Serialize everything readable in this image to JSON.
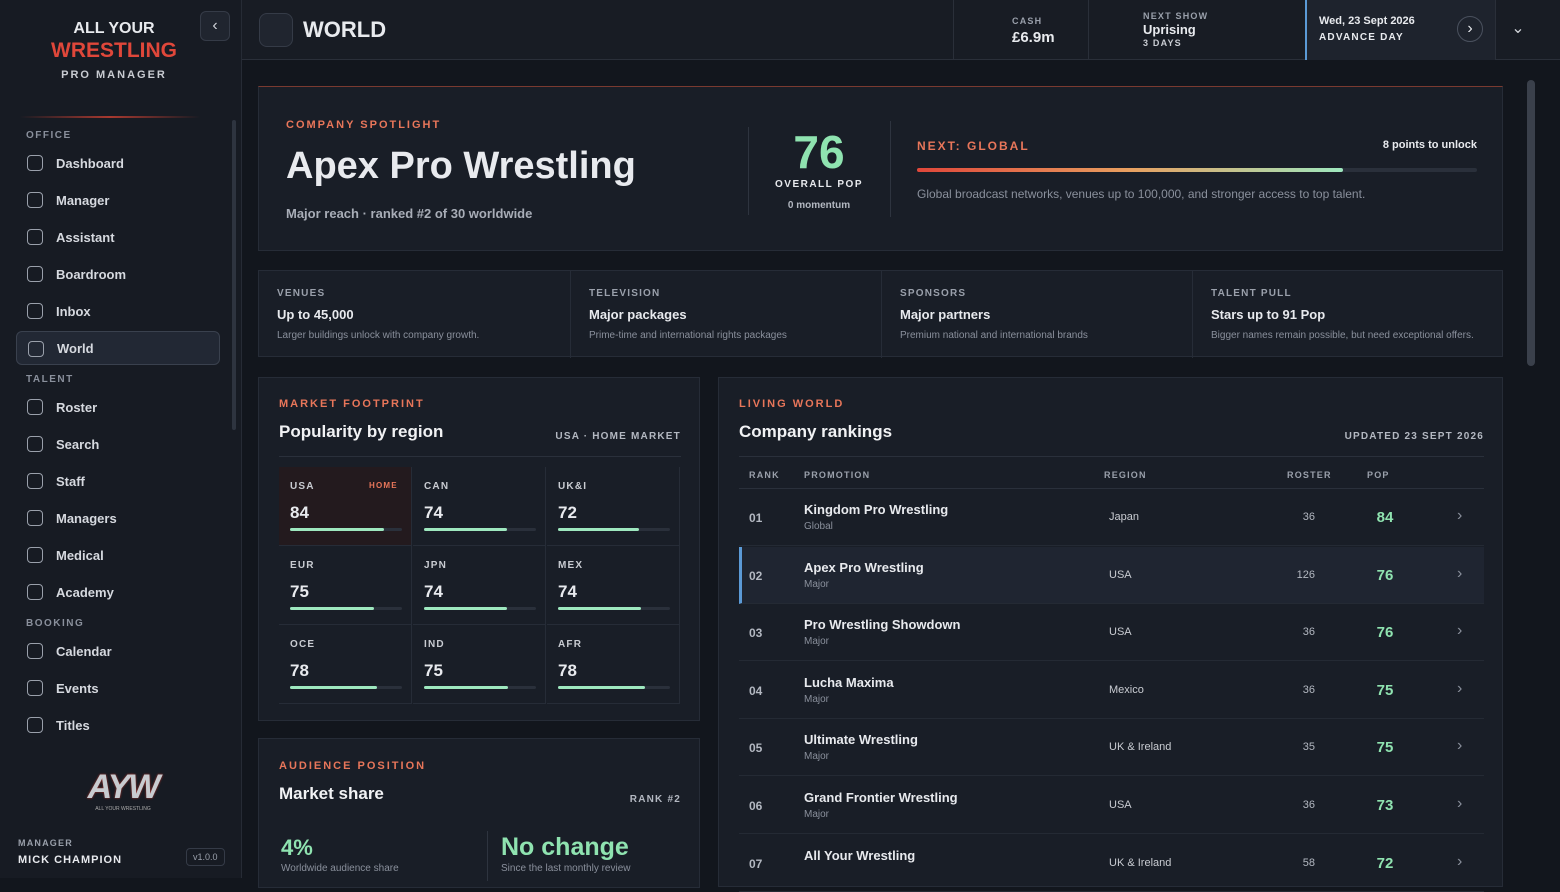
{
  "sidebar": {
    "brand": {
      "line1": "ALL YOUR",
      "line2": "WRESTLING",
      "line3": "PRO MANAGER"
    },
    "sections": [
      {
        "title": "OFFICE",
        "items": [
          {
            "label": "Dashboard"
          },
          {
            "label": "Manager"
          },
          {
            "label": "Assistant"
          },
          {
            "label": "Boardroom"
          },
          {
            "label": "Inbox"
          },
          {
            "label": "World",
            "active": true
          }
        ]
      },
      {
        "title": "TALENT",
        "items": [
          {
            "label": "Roster"
          },
          {
            "label": "Search"
          },
          {
            "label": "Staff"
          },
          {
            "label": "Managers"
          },
          {
            "label": "Medical"
          },
          {
            "label": "Academy"
          }
        ]
      },
      {
        "title": "BOOKING",
        "items": [
          {
            "label": "Calendar"
          },
          {
            "label": "Events"
          },
          {
            "label": "Titles"
          }
        ]
      }
    ],
    "logo": {
      "mark": "AYW",
      "caption": "ALL YOUR WRESTLING"
    },
    "footer": {
      "role": "MANAGER",
      "name": "MICK CHAMPION",
      "version": "v1.0.0"
    }
  },
  "topbar": {
    "title": "WORLD",
    "cash_label": "CASH",
    "cash": "£6.9m",
    "next_show_label": "NEXT SHOW",
    "next_show": "Uprising",
    "next_show_in": "3 DAYS",
    "date": "Wed, 23 Sept 2026",
    "advance": "ADVANCE DAY"
  },
  "spotlight": {
    "kicker": "COMPANY SPOTLIGHT",
    "name": "Apex Pro Wrestling",
    "subtitle": "Major reach · ranked #2 of 30 worldwide",
    "pop": 76,
    "pop_label": "OVERALL POP",
    "momentum": "0 momentum",
    "next": "NEXT: GLOBAL",
    "unlock": "8 points to unlock",
    "next_desc": "Global broadcast networks, venues up to 100,000, and stronger access to top talent."
  },
  "stats": [
    {
      "label": "VENUES",
      "value": "Up to 45,000",
      "note": "Larger buildings unlock with company growth."
    },
    {
      "label": "TELEVISION",
      "value": "Major packages",
      "note": "Prime-time and international rights packages"
    },
    {
      "label": "SPONSORS",
      "value": "Major partners",
      "note": "Premium national and international brands"
    },
    {
      "label": "TALENT PULL",
      "value": "Stars up to 91 Pop",
      "note": "Bigger names remain possible, but need exceptional offers."
    }
  ],
  "market": {
    "kicker": "MARKET FOOTPRINT",
    "title": "Popularity by region",
    "home_market": "USA · HOME MARKET",
    "home_tag": "HOME",
    "regions": [
      {
        "code": "USA",
        "pop": 84,
        "home": true
      },
      {
        "code": "CAN",
        "pop": 74
      },
      {
        "code": "UK&I",
        "pop": 72
      },
      {
        "code": "EUR",
        "pop": 75
      },
      {
        "code": "JPN",
        "pop": 74
      },
      {
        "code": "MEX",
        "pop": 74
      },
      {
        "code": "OCE",
        "pop": 78
      },
      {
        "code": "IND",
        "pop": 75
      },
      {
        "code": "AFR",
        "pop": 78
      }
    ]
  },
  "audience": {
    "kicker": "AUDIENCE POSITION",
    "title": "Market share",
    "rank": "RANK #2",
    "share": "4%",
    "share_note": "Worldwide audience share",
    "change": "No change",
    "change_note": "Since the last monthly review"
  },
  "rankings": {
    "kicker": "LIVING WORLD",
    "title": "Company rankings",
    "updated": "UPDATED 23 SEPT 2026",
    "columns": [
      "RANK",
      "PROMOTION",
      "REGION",
      "ROSTER",
      "POP"
    ],
    "rows": [
      {
        "rank": "01",
        "name": "Kingdom Pro Wrestling",
        "tier": "Global",
        "region": "Japan",
        "roster": 36,
        "pop": 84
      },
      {
        "rank": "02",
        "name": "Apex Pro Wrestling",
        "tier": "Major",
        "region": "USA",
        "roster": 126,
        "pop": 76,
        "selected": true
      },
      {
        "rank": "03",
        "name": "Pro Wrestling Showdown",
        "tier": "Major",
        "region": "USA",
        "roster": 36,
        "pop": 76
      },
      {
        "rank": "04",
        "name": "Lucha Maxima",
        "tier": "Major",
        "region": "Mexico",
        "roster": 36,
        "pop": 75
      },
      {
        "rank": "05",
        "name": "Ultimate Wrestling",
        "tier": "Major",
        "region": "UK & Ireland",
        "roster": 35,
        "pop": 75
      },
      {
        "rank": "06",
        "name": "Grand Frontier Wrestling",
        "tier": "Major",
        "region": "USA",
        "roster": 36,
        "pop": 73
      },
      {
        "rank": "07",
        "name": "All Your Wrestling",
        "region": "UK & Ireland",
        "roster": 58,
        "pop": 72
      }
    ]
  }
}
